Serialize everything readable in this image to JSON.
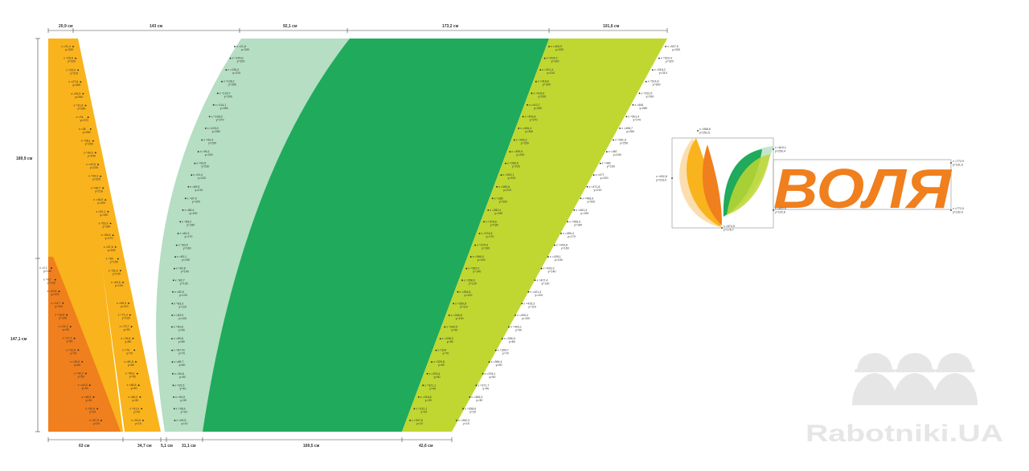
{
  "top_dimensions": [
    "20,9 см",
    "143 см",
    "92,1 см",
    "173,2 см",
    "101,6 см"
  ],
  "bottom_dimensions": [
    "63 см",
    "34,7 см",
    "5,1 см",
    "31,1 см",
    "169,5 см",
    "42,6 см"
  ],
  "side_dimensions": [
    "189,9 см",
    "147,1 см"
  ],
  "colors": {
    "orange_light": "#f9b31c",
    "orange_dark": "#f07f1d",
    "green_light": "#b5dec3",
    "green_main": "#20aa5c",
    "green_lime": "#bfd730",
    "grey_box": "#9a9a9a",
    "watermark": "#e6e6e6"
  },
  "markers": {
    "stripe1": [
      {
        "x": "x =21,4",
        "y": "y=330"
      },
      {
        "x": "x =25,6",
        "y": "y=320"
      },
      {
        "x": "x =25,9",
        "y": "y=310"
      },
      {
        "x": "x =27,6",
        "y": "y=300"
      },
      {
        "x": "x =29,9",
        "y": "y=290"
      },
      {
        "x": "x =31,8",
        "y": "y=280"
      },
      {
        "x": "x =34",
        "y": "y=270"
      },
      {
        "x": "x =36",
        "y": "y=260"
      },
      {
        "x": "x =38,1",
        "y": "y=250"
      },
      {
        "x": "x =40,3",
        "y": "y=240"
      },
      {
        "x": "x =42,6",
        "y": "y=230"
      },
      {
        "x": "x =44,3",
        "y": "y=220"
      },
      {
        "x": "x =46,7",
        "y": "y=210"
      },
      {
        "x": "x =48,9",
        "y": "y=200"
      },
      {
        "x": "x =51,1",
        "y": "y=190"
      },
      {
        "x": "x =53,3",
        "y": "y=180"
      },
      {
        "x": "x =55,5",
        "y": "y=170"
      },
      {
        "x": "x =57,8",
        "y": "y=160"
      },
      {
        "x": "x =60",
        "y": "y=150"
      },
      {
        "x": "x =62,3",
        "y": "y=140"
      },
      {
        "x": "x =64,6",
        "y": "y=130"
      }
    ],
    "stripe1_lower": [
      {
        "x": "x =69,9",
        "y": "y=110"
      },
      {
        "x": "x =71,3",
        "y": "y=100"
      },
      {
        "x": "x =73,7",
        "y": "y=90"
      },
      {
        "x": "x =76,8",
        "y": "y=80"
      },
      {
        "x": "x =79",
        "y": "y=70"
      },
      {
        "x": "x =81,5",
        "y": "y=60"
      },
      {
        "x": "x =84,1",
        "y": "y=50"
      },
      {
        "x": "x =86,8",
        "y": "y=40"
      },
      {
        "x": "x =89,2",
        "y": "y=30"
      },
      {
        "x": "x =91,9",
        "y": "y=20"
      },
      {
        "x": "x =94,5",
        "y": "y=10"
      }
    ],
    "orange_dark": [
      {
        "x": "x =2,1",
        "y": "y=140"
      },
      {
        "x": "x =8,7",
        "y": "y=130"
      },
      {
        "x": "x =10,8",
        "y": "y=120"
      },
      {
        "x": "x =14,7",
        "y": "y=110"
      },
      {
        "x": "x =18,5",
        "y": "y=100"
      },
      {
        "x": "x =21,1",
        "y": "y=90"
      },
      {
        "x": "x =27,1",
        "y": "y=80"
      },
      {
        "x": "x =31,6",
        "y": "y=70"
      },
      {
        "x": "x =35,9",
        "y": "y=60"
      },
      {
        "x": "x =40,2",
        "y": "y=50"
      },
      {
        "x": "x =44,5",
        "y": "y=40"
      },
      {
        "x": "x =48,9",
        "y": "y=30"
      },
      {
        "x": "x =53,4",
        "y": "y=20"
      },
      {
        "x": "x =57,9",
        "y": "y=10"
      }
    ],
    "green_light": [
      {
        "x": "x =21,8",
        "y": "y=330"
      },
      {
        "x": "x =145,6",
        "y": "y=320"
      },
      {
        "x": "x =136,4",
        "y": "y=310"
      },
      {
        "x": "x =128,1",
        "y": "y=300"
      },
      {
        "x": "x =120,7",
        "y": "y=290"
      },
      {
        "x": "x =114,1",
        "y": "y=280"
      },
      {
        "x": "x =108,6",
        "y": "y=270"
      },
      {
        "x": "x =103,5",
        "y": "y=260"
      },
      {
        "x": "x =99,4",
        "y": "y=250"
      },
      {
        "x": "x =96,1",
        "y": "y=240"
      },
      {
        "x": "x =93,6",
        "y": "y=230"
      },
      {
        "x": "x =91,4",
        "y": "y=220"
      },
      {
        "x": "x =89,5",
        "y": "y=210"
      },
      {
        "x": "x =87,9",
        "y": "y=200"
      },
      {
        "x": "x =86,4",
        "y": "y=190"
      },
      {
        "x": "x =85,2",
        "y": "y=180"
      },
      {
        "x": "x =84,3",
        "y": "y=170"
      },
      {
        "x": "x =83,6",
        "y": "y=160"
      },
      {
        "x": "x =83,1",
        "y": "y=150"
      },
      {
        "x": "x =82,8",
        "y": "y=140"
      },
      {
        "x": "x =82,7",
        "y": "y=130"
      },
      {
        "x": "x =82,9",
        "y": "y=120"
      },
      {
        "x": "x =83,3",
        "y": "y=110"
      },
      {
        "x": "x =83,9",
        "y": "y=100"
      },
      {
        "x": "x =84,8",
        "y": "y=90"
      },
      {
        "x": "x =85,8",
        "y": "y=80"
      },
      {
        "x": "x =87,41",
        "y": "y=70"
      },
      {
        "x": "x =88,7",
        "y": "y=60"
      },
      {
        "x": "x =90,6",
        "y": "y=50"
      },
      {
        "x": "x =92,5",
        "y": "y=40"
      },
      {
        "x": "x =94,5",
        "y": "y=30"
      },
      {
        "x": "x =96,9",
        "y": "y=20"
      },
      {
        "x": "x =99,5",
        "y": "y=10"
      }
    ],
    "green_main": [
      {
        "x": "x =426,9",
        "y": "y=330"
      },
      {
        "x": "x =424,2",
        "y": "y=320"
      },
      {
        "x": "x =421,4",
        "y": "y=310"
      },
      {
        "x": "x =418,6",
        "y": "y=300"
      },
      {
        "x": "x =415,6",
        "y": "y=290"
      },
      {
        "x": "x =412,7",
        "y": "y=280"
      },
      {
        "x": "x =409,6",
        "y": "y=270"
      },
      {
        "x": "x =406,4",
        "y": "y=260"
      },
      {
        "x": "x =403,2",
        "y": "y=250"
      },
      {
        "x": "x =399,9",
        "y": "y=240"
      },
      {
        "x": "x =396,6",
        "y": "y=230"
      },
      {
        "x": "x =393,1",
        "y": "y=220"
      },
      {
        "x": "x =389,6",
        "y": "y=210"
      },
      {
        "x": "x =386",
        "y": "y=200"
      },
      {
        "x": "x =382,4",
        "y": "y=190"
      },
      {
        "x": "x =378,6",
        "y": "y=180"
      },
      {
        "x": "x =374,8",
        "y": "y=170"
      },
      {
        "x": "x =370,9",
        "y": "y=160"
      },
      {
        "x": "x =366,9",
        "y": "y=150"
      },
      {
        "x": "x =362,9",
        "y": "y=140"
      },
      {
        "x": "x =358,9",
        "y": "y=130"
      },
      {
        "x": "x =354,8",
        "y": "y=120"
      },
      {
        "x": "x =350,8",
        "y": "y=110"
      },
      {
        "x": "x =346,8",
        "y": "y=100"
      },
      {
        "x": "x =342,5",
        "y": "y=90"
      },
      {
        "x": "x =338,3",
        "y": "y=80"
      },
      {
        "x": "x =334",
        "y": "y=70"
      },
      {
        "x": "x =329,8",
        "y": "y=60"
      },
      {
        "x": "x =325,4",
        "y": "y=50"
      },
      {
        "x": "x =321,1",
        "y": "y=40"
      },
      {
        "x": "x =316,6",
        "y": "y=30"
      },
      {
        "x": "x =312,1",
        "y": "y=20"
      },
      {
        "x": "x =307,6",
        "y": "y=10"
      }
    ],
    "green_lime": [
      {
        "x": "x =527,5",
        "y": "y=330"
      },
      {
        "x": "x =523,4",
        "y": "y=320"
      },
      {
        "x": "x =518,2",
        "y": "y=310"
      },
      {
        "x": "x =514,8",
        "y": "y=300"
      },
      {
        "x": "x =510,5",
        "y": "y=290"
      },
      {
        "x": "x =506",
        "y": "y=280"
      },
      {
        "x": "x =501,4",
        "y": "y=270"
      },
      {
        "x": "x =496,7",
        "y": "y=260"
      },
      {
        "x": "x =491,9",
        "y": "y=250"
      },
      {
        "x": "x =487",
        "y": "y=240"
      },
      {
        "x": "x =482",
        "y": "y=230"
      },
      {
        "x": "x =477",
        "y": "y=220"
      },
      {
        "x": "x =471,8",
        "y": "y=210"
      },
      {
        "x": "x =466,6",
        "y": "y=200"
      },
      {
        "x": "x =461,3",
        "y": "y=190"
      },
      {
        "x": "x =455,9",
        "y": "y=180"
      },
      {
        "x": "x =450,4",
        "y": "y=170"
      },
      {
        "x": "x =444,8",
        "y": "y=160"
      },
      {
        "x": "x =439,1",
        "y": "y=150"
      },
      {
        "x": "x =433,3",
        "y": "y=140"
      },
      {
        "x": "x =427,4",
        "y": "y=130"
      },
      {
        "x": "x =421,4",
        "y": "y=120"
      },
      {
        "x": "x =415,3",
        "y": "y=110"
      },
      {
        "x": "x =409,2",
        "y": "y=100"
      },
      {
        "x": "x =403,1",
        "y": "y=90"
      },
      {
        "x": "x =396,9",
        "y": "y=80"
      },
      {
        "x": "x =390,7",
        "y": "y=70"
      },
      {
        "x": "x =384,4",
        "y": "y=60"
      },
      {
        "x": "x =378,1",
        "y": "y=50"
      },
      {
        "x": "x =371,7",
        "y": "y=40"
      },
      {
        "x": "x =365,3",
        "y": "y=30"
      },
      {
        "x": "x =358,8",
        "y": "y=20"
      },
      {
        "x": "x =352,3",
        "y": "y=10"
      }
    ]
  },
  "logo": {
    "wordmark": "ВОЛЯ",
    "points": [
      {
        "x": "x =558,6",
        "y": "y=252,5"
      },
      {
        "x": "x =619,1",
        "y": "y=250,4"
      },
      {
        "x": "x =532,8",
        "y": "y=216,9"
      },
      {
        "x": "x =574,9",
        "y": "y=176,7"
      },
      {
        "x": "x =622,5",
        "y": "y=192,8"
      },
      {
        "x": "x =772,9",
        "y": "y=231,5"
      },
      {
        "x": "x =772,9",
        "y": "y=192,4"
      }
    ]
  },
  "watermark": {
    "text": "Rabotniki.UA",
    "icon": "workers-helmet-icon"
  }
}
